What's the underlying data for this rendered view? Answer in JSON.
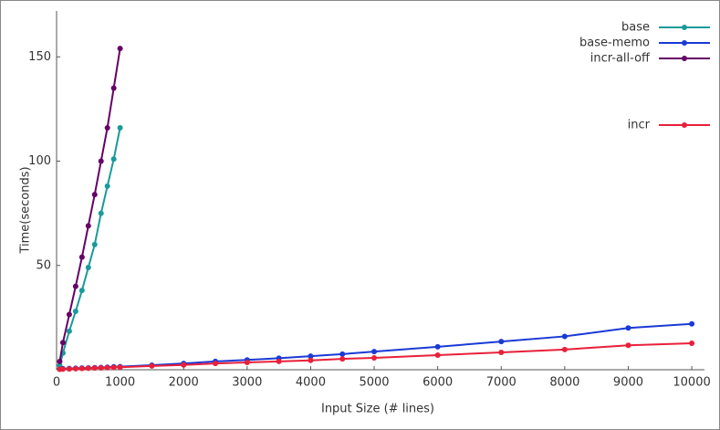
{
  "chart_data": {
    "type": "line",
    "xlabel": "Input Size (# lines)",
    "ylabel": "Time(seconds)",
    "xlim": [
      0,
      10200
    ],
    "ylim": [
      0,
      172
    ],
    "xticks": [
      0,
      1000,
      2000,
      3000,
      4000,
      5000,
      6000,
      7000,
      8000,
      9000,
      10000
    ],
    "yticks": [
      50,
      100,
      150
    ],
    "legend": "top-right",
    "series": [
      {
        "name": "base",
        "color": "#1a9a9a",
        "x": [
          50,
          100,
          200,
          300,
          400,
          500,
          600,
          700,
          800,
          900,
          1000
        ],
        "values": [
          2,
          8,
          18.5,
          28,
          38,
          49,
          60,
          75,
          88,
          101,
          116
        ]
      },
      {
        "name": "base-memo",
        "color": "#1a3ad6",
        "x": [
          50,
          100,
          200,
          300,
          400,
          500,
          600,
          700,
          800,
          900,
          1000,
          1500,
          2000,
          2500,
          3000,
          3500,
          4000,
          4500,
          5000,
          6000,
          7000,
          8000,
          9000,
          10000
        ],
        "values": [
          0.3,
          0.5,
          0.6,
          0.7,
          0.8,
          0.9,
          1,
          1.1,
          1.2,
          1.4,
          1.5,
          2.2,
          3,
          4,
          4.7,
          5.5,
          6.5,
          7.5,
          8.7,
          11,
          13.5,
          16,
          20,
          22
        ]
      },
      {
        "name": "incr-all-off",
        "color": "#660066",
        "x": [
          50,
          100,
          200,
          300,
          400,
          500,
          600,
          700,
          800,
          900,
          1000
        ],
        "values": [
          4,
          13,
          26.5,
          40,
          54,
          69,
          84,
          100,
          116,
          135,
          154
        ]
      },
      {
        "name": "incr",
        "color": "#e8203a",
        "x": [
          50,
          100,
          200,
          300,
          400,
          500,
          600,
          700,
          800,
          900,
          1000,
          1500,
          2000,
          2500,
          3000,
          3500,
          4000,
          4500,
          5000,
          6000,
          7000,
          8000,
          9000,
          10000
        ],
        "values": [
          0.2,
          0.3,
          0.4,
          0.5,
          0.6,
          0.7,
          0.8,
          0.9,
          1,
          1.1,
          1.2,
          1.8,
          2.3,
          3,
          3.5,
          4,
          4.5,
          5.2,
          5.7,
          7,
          8.3,
          9.7,
          11.7,
          12.7
        ]
      }
    ]
  }
}
